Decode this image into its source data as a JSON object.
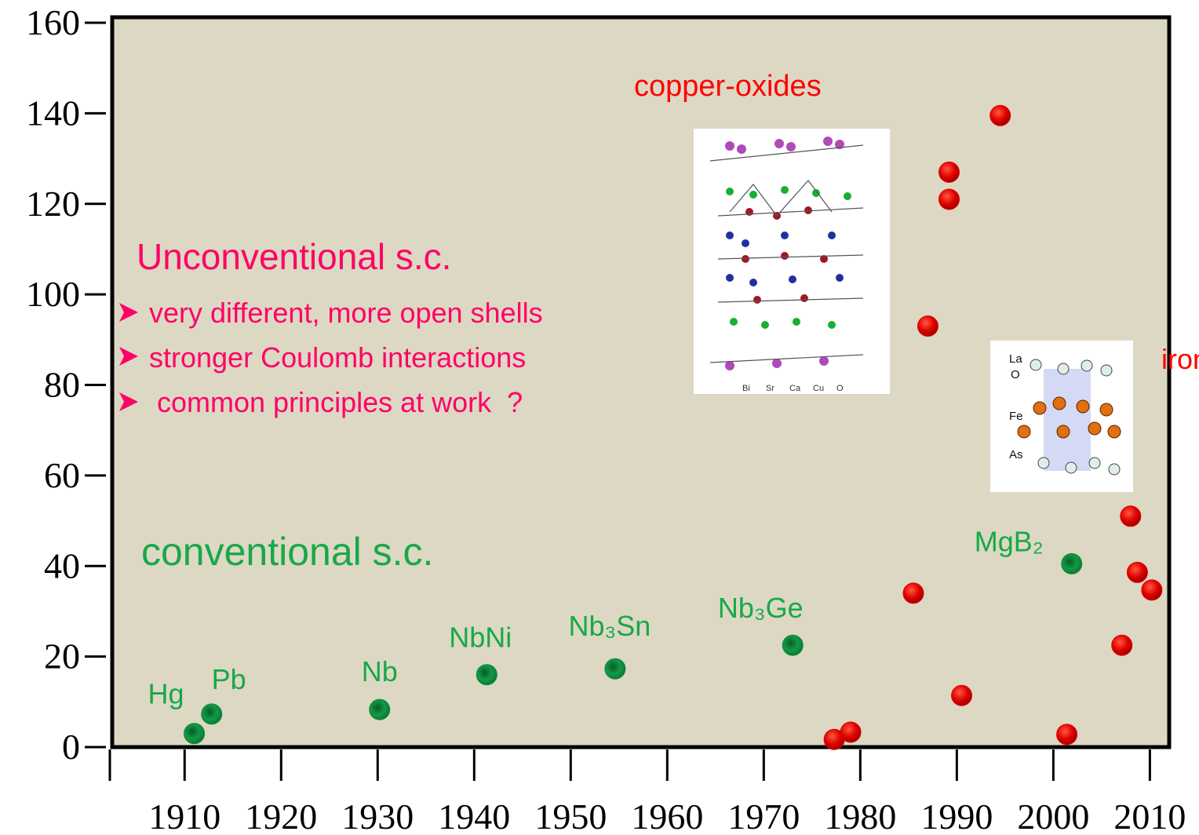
{
  "chart_data": {
    "type": "scatter",
    "xlim": [
      1902.5,
      2012
    ],
    "xticks": [
      1910,
      1920,
      1930,
      1940,
      1950,
      1960,
      1970,
      1980,
      1990,
      2000,
      2010
    ],
    "ylim": [
      0,
      160
    ],
    "yticks": [
      0,
      20,
      40,
      60,
      80,
      100,
      120,
      140,
      160
    ],
    "background": "#ddd8c4",
    "series": [
      {
        "name": "conventional s.c.",
        "color": "#0e8a3c",
        "x": [
          1911,
          1912.8,
          1930.2,
          1941.3,
          1954.6,
          1973,
          2001.9
        ],
        "values": [
          3,
          7.3,
          8.3,
          16,
          17.3,
          22.5,
          40.5
        ],
        "point_labels": [
          "Hg",
          "Pb",
          "Nb",
          "NbNi",
          "Nb₃Sn",
          "Nb₃Ge",
          "MgB₂"
        ]
      },
      {
        "name": "Unconventional s.c.",
        "color": "#e00000",
        "x": [
          1977.3,
          1979,
          1985.5,
          1987,
          1989.2,
          1989.2,
          1990.5,
          1994.5,
          2001.4,
          2007.1,
          2008,
          2008.7,
          2010.2
        ],
        "values": [
          1.7,
          3.3,
          34,
          93,
          127,
          121,
          11.4,
          139.5,
          2.8,
          22.5,
          51,
          38.6,
          34.7
        ]
      }
    ],
    "annotations": {
      "copper": "copper-oxides",
      "iron": "iron",
      "bullets": [
        "very different, more open shells",
        "stronger Coulomb interactions",
        " common principles at work  ?"
      ]
    },
    "cuprate_legend": [
      "Bi",
      "Sr",
      "Ca",
      "Cu",
      "O"
    ],
    "pnictide_labels": [
      "La",
      "O",
      "Fe",
      "As"
    ]
  }
}
